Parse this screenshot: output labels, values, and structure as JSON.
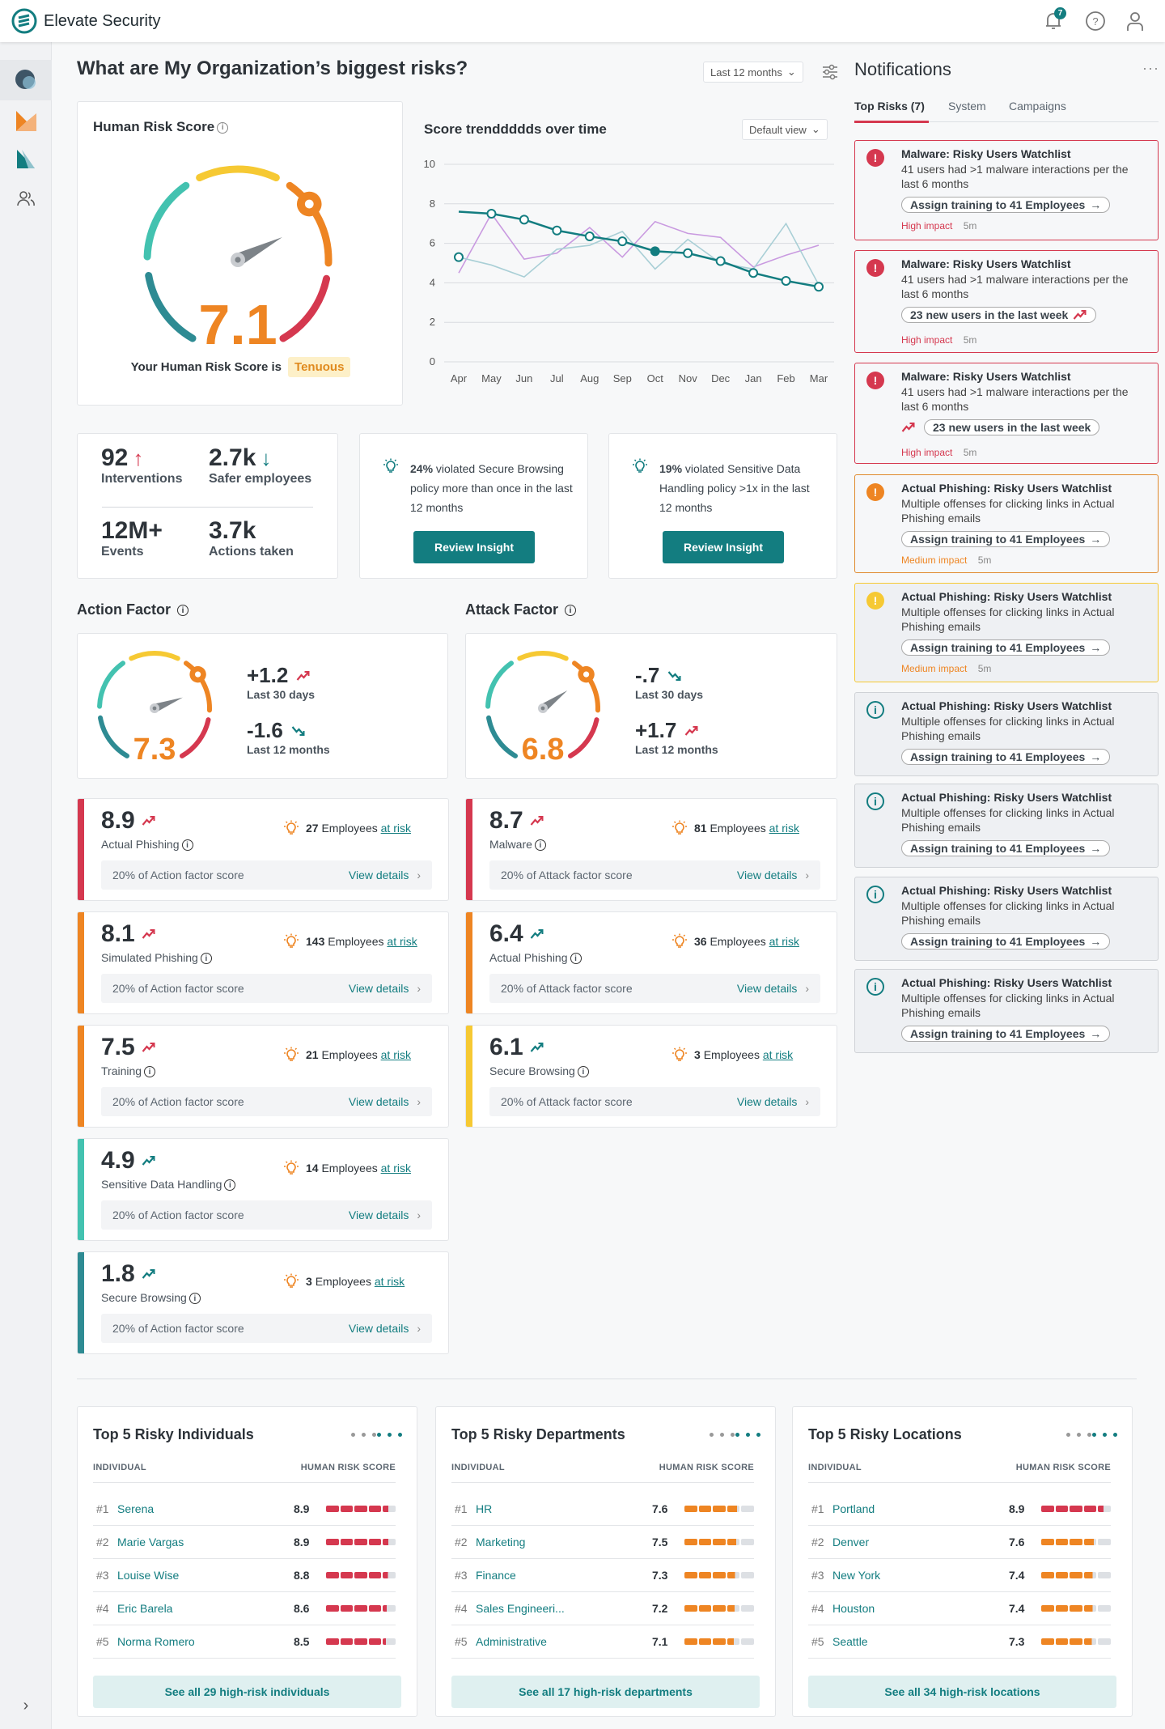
{
  "app": {
    "name": "Elevate Security",
    "notif_count": "7"
  },
  "page": {
    "title": "What are My Organization’s biggest risks?",
    "range": "Last 12 months"
  },
  "hrs": {
    "title": "Human Risk Score",
    "value": 7.1,
    "value_text": "7.1",
    "caption": "Your Human Risk Score is",
    "level": "Tenuous"
  },
  "chart_data": {
    "type": "line",
    "title": "Score trenddddds over time",
    "view": "Default view",
    "categories": [
      "Apr",
      "May",
      "Jun",
      "Jul",
      "Aug",
      "Sep",
      "Oct",
      "Nov",
      "Dec",
      "Jan",
      "Feb",
      "Mar"
    ],
    "ylim": [
      0,
      10
    ],
    "yticks": [
      0,
      2,
      4,
      6,
      8,
      10
    ],
    "series": [
      {
        "name": "score",
        "color": "#137d80",
        "values": [
          7.6,
          7.5,
          7.2,
          6.65,
          6.35,
          6.1,
          5.6,
          5.5,
          5.1,
          4.5,
          4.1,
          3.8
        ]
      },
      {
        "name": "series-b",
        "color": "#a9cfd6",
        "values": [
          5.3,
          4.9,
          4.3,
          5.7,
          5.9,
          6.6,
          4.7,
          6.2,
          5.0,
          4.7,
          7.0,
          3.9
        ]
      },
      {
        "name": "series-c",
        "color": "#c99ae0",
        "values": [
          4.5,
          7.5,
          5.2,
          5.5,
          6.8,
          5.3,
          7.1,
          6.5,
          6.3,
          4.8,
          5.4,
          5.9
        ]
      }
    ]
  },
  "stats": [
    {
      "value": "92",
      "label": "Interventions",
      "trend": "up"
    },
    {
      "value": "2.7k",
      "label": "Safer employees",
      "trend": "down"
    },
    {
      "value": "12M+",
      "label": "Events"
    },
    {
      "value": "3.7k",
      "label": "Actions taken"
    }
  ],
  "insights": [
    {
      "bold": "24%",
      "text": " violated Secure Browsing policy more than once in the last 12 months",
      "button": "Review Insight"
    },
    {
      "bold": "19%",
      "text": " violated Sensitive Data Handling policy >1x in the last 12 months",
      "button": "Review Insight"
    }
  ],
  "action_factor": {
    "title": "Action Factor",
    "value": 7.3,
    "value_text": "7.3",
    "d30": "+1.2",
    "d30_label": "Last 30 days",
    "d30_trend": "up",
    "d12": "-1.6",
    "d12_label": "Last 12 months",
    "d12_trend": "down"
  },
  "attack_factor": {
    "title": "Attack Factor",
    "value": 6.8,
    "value_text": "6.8",
    "d30": "-.7",
    "d30_label": "Last 30 days",
    "d30_trend": "down",
    "d12": "+1.7",
    "d12_label": "Last 12 months",
    "d12_trend": "up"
  },
  "employees_word": "Employees",
  "at_risk": "at risk",
  "view_details": "View details",
  "action_items": [
    {
      "score": "8.9",
      "name": "Actual Phishing",
      "count": "27",
      "pct": "20% of Action factor score",
      "color": "#d5384f",
      "trend": "red"
    },
    {
      "score": "8.1",
      "name": "Simulated Phishing",
      "count": "143",
      "pct": "20% of Action factor score",
      "color": "#ee8523",
      "trend": "red"
    },
    {
      "score": "7.5",
      "name": "Training",
      "count": "21",
      "pct": "20% of Action factor score",
      "color": "#ee8523",
      "trend": "red"
    },
    {
      "score": "4.9",
      "name": "Sensitive Data Handling",
      "count": "14",
      "pct": "20% of Action factor score",
      "color": "#43c2b0",
      "trend": "teal"
    },
    {
      "score": "1.8",
      "name": "Secure Browsing",
      "count": "3",
      "pct": "20% of Action factor score",
      "color": "#2e8b93",
      "trend": "teal"
    }
  ],
  "attack_items": [
    {
      "score": "8.7",
      "name": "Malware",
      "count": "81",
      "pct": "20% of Attack factor score",
      "color": "#d5384f",
      "trend": "red"
    },
    {
      "score": "6.4",
      "name": "Actual Phishing",
      "count": "36",
      "pct": "20% of Attack factor score",
      "color": "#ee8523",
      "trend": "teal"
    },
    {
      "score": "6.1",
      "name": "Secure Browsing",
      "count": "3",
      "pct": "20% of Attack factor score",
      "color": "#f6c933",
      "trend": "teal"
    }
  ],
  "notifications": {
    "title": "Notifications",
    "tabs": [
      "Top Risks (7)",
      "System",
      "Campaigns"
    ],
    "items": [
      {
        "sev": "high",
        "title": "Malware: Risky Users Watchlist",
        "desc": "41 users had >1 malware interactions per the last 6 months",
        "action": "Assign training to 41 Employees",
        "action_icon": "arrow",
        "impact": "High impact",
        "time": "5m"
      },
      {
        "sev": "high",
        "title": "Malware: Risky Users Watchlist",
        "desc": "41 users had >1 malware interactions per the last 6 months",
        "action": "23 new users in the last week",
        "action_icon": "trend-after",
        "impact": "High impact",
        "time": "5m"
      },
      {
        "sev": "high",
        "title": "Malware: Risky Users Watchlist",
        "desc": "41 users had >1 malware interactions per the last 6 months",
        "action": "23 new users in the last week",
        "action_icon": "trend-before",
        "impact": "High impact",
        "time": "5m"
      },
      {
        "sev": "medium",
        "title": "Actual Phishing: Risky Users Watchlist",
        "desc": "Multiple offenses for clicking links in Actual Phishing emails",
        "action": "Assign training to 41 Employees",
        "action_icon": "arrow",
        "impact": "Medium impact",
        "time": "5m"
      },
      {
        "sev": "warn",
        "title": "Actual Phishing: Risky Users Watchlist",
        "desc": "Multiple offenses for clicking links in Actual Phishing emails",
        "action": "Assign training to 41 Employees",
        "action_icon": "arrow",
        "impact": "Medium impact",
        "time": "5m"
      },
      {
        "sev": "info",
        "title": "Actual Phishing: Risky Users Watchlist",
        "desc": "Multiple offenses for clicking links in Actual Phishing emails",
        "action": "Assign training to 41 Employees",
        "action_icon": "arrow"
      },
      {
        "sev": "info",
        "title": "Actual Phishing: Risky Users Watchlist",
        "desc": "Multiple offenses for clicking links in Actual Phishing emails",
        "action": "Assign training to 41 Employees",
        "action_icon": "arrow"
      },
      {
        "sev": "info",
        "title": "Actual Phishing: Risky Users Watchlist",
        "desc": "Multiple offenses for clicking links in Actual Phishing emails",
        "action": "Assign training to 41 Employees",
        "action_icon": "arrow"
      },
      {
        "sev": "info",
        "title": "Actual Phishing: Risky Users Watchlist",
        "desc": "Multiple offenses for clicking links in Actual Phishing emails",
        "action": "Assign training to 41 Employees",
        "action_icon": "arrow"
      }
    ]
  },
  "tables": [
    {
      "title": "Top 5 Risky Individuals",
      "col1": "INDIVIDUAL",
      "col2": "HUMAN RISK SCORE",
      "see_all": "See all 29 high-risk individuals",
      "rows": [
        {
          "rank": "#1",
          "name": "Serena",
          "score": 8.9
        },
        {
          "rank": "#2",
          "name": "Marie Vargas",
          "score": 8.9
        },
        {
          "rank": "#3",
          "name": "Louise Wise",
          "score": 8.8
        },
        {
          "rank": "#4",
          "name": "Eric Barela",
          "score": 8.6
        },
        {
          "rank": "#5",
          "name": "Norma Romero",
          "score": 8.5
        }
      ]
    },
    {
      "title": "Top 5 Risky Departments",
      "col1": "INDIVIDUAL",
      "col2": "HUMAN RISK SCORE",
      "see_all": "See all 17 high-risk departments",
      "rows": [
        {
          "rank": "#1",
          "name": "HR",
          "score": 7.6
        },
        {
          "rank": "#2",
          "name": "Marketing",
          "score": 7.5
        },
        {
          "rank": "#3",
          "name": "Finance",
          "score": 7.3
        },
        {
          "rank": "#4",
          "name": "Sales Engineeri...",
          "score": 7.2
        },
        {
          "rank": "#5",
          "name": "Administrative",
          "score": 7.1
        }
      ]
    },
    {
      "title": "Top 5 Risky Locations",
      "col1": "INDIVIDUAL",
      "col2": "HUMAN RISK SCORE",
      "see_all": "See all 34 high-risk locations",
      "rows": [
        {
          "rank": "#1",
          "name": "Portland",
          "score": 8.9
        },
        {
          "rank": "#2",
          "name": "Denver",
          "score": 7.6
        },
        {
          "rank": "#3",
          "name": "New York",
          "score": 7.4
        },
        {
          "rank": "#4",
          "name": "Houston",
          "score": 7.4
        },
        {
          "rank": "#5",
          "name": "Seattle",
          "score": 7.3
        }
      ]
    }
  ],
  "colors": {
    "teal": "#137d80",
    "red": "#d5384f",
    "orange": "#ee8523",
    "yellow": "#f6c933",
    "light_teal": "#43c2b0",
    "dark_teal": "#2e8b93"
  }
}
